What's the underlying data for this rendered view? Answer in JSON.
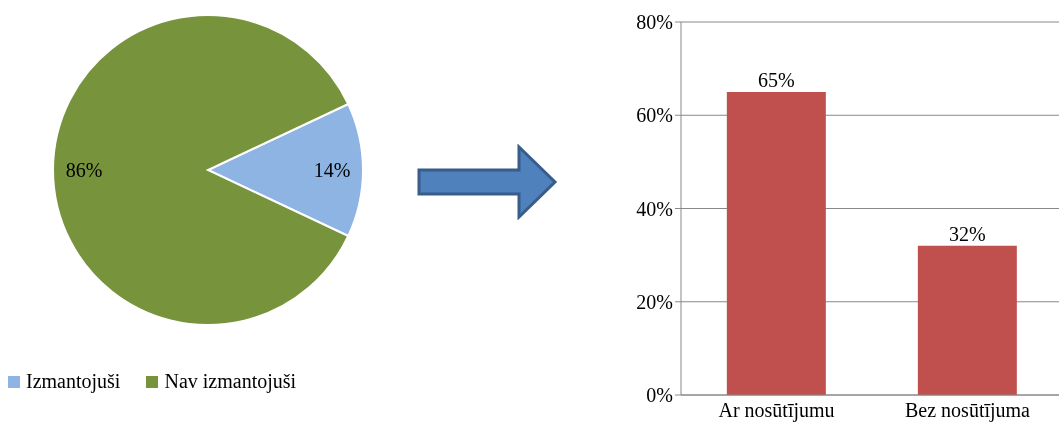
{
  "chart_data": [
    {
      "type": "pie",
      "categories": [
        "Izmantojuši",
        "Nav izmantojuši"
      ],
      "values": [
        14,
        86
      ],
      "colors": [
        "#8eb4e3",
        "#77933c"
      ],
      "value_labels": [
        "14%",
        "86%"
      ],
      "legend": "bottom"
    },
    {
      "type": "bar",
      "categories": [
        "Ar nosūtījumu",
        "Bez nosūtījuma"
      ],
      "values": [
        65,
        32
      ],
      "color": "#c0504d",
      "value_labels": [
        "65%",
        "32%"
      ],
      "ylim": [
        0,
        80
      ],
      "yticks": [
        {
          "value": 0,
          "label": "0%"
        },
        {
          "value": 20,
          "label": "20%"
        },
        {
          "value": 40,
          "label": "40%"
        },
        {
          "value": 60,
          "label": "60%"
        },
        {
          "value": 80,
          "label": "80%"
        }
      ],
      "grid": "y"
    }
  ]
}
